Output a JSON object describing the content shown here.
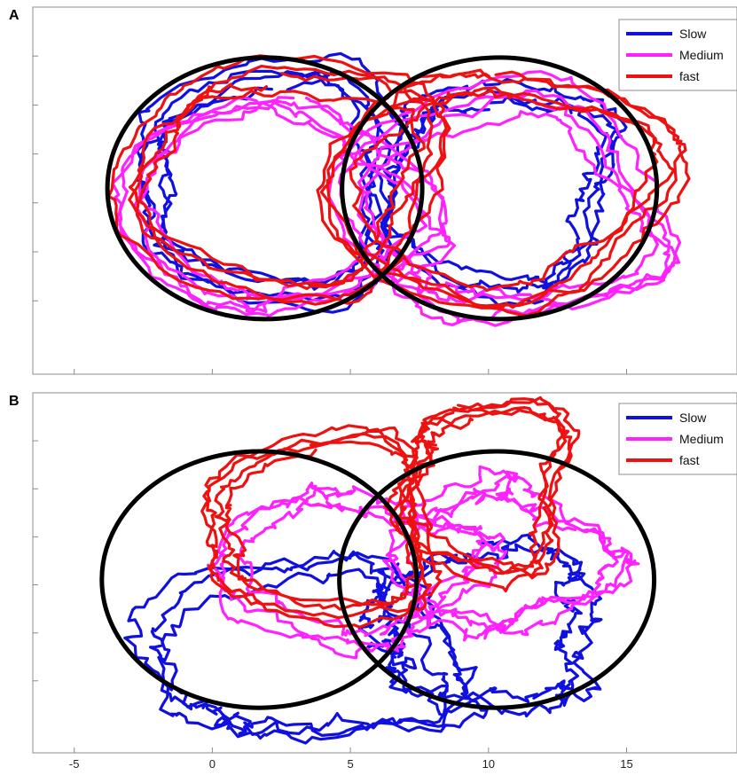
{
  "figure": {
    "series_colors": {
      "Slow": "#1010e0",
      "Medium": "#ff22ff",
      "fast": "#ee1111"
    },
    "circle_color": "#000000"
  },
  "chart_data": [
    {
      "panel_label": "A",
      "type": "line",
      "title": "",
      "xlabel": "",
      "ylabel": "",
      "xlim": [
        -6.5,
        19
      ],
      "ylim": [
        -1,
        15
      ],
      "grid": false,
      "legend_position": "top-right",
      "x_ticks": [],
      "legend": [
        "Slow",
        "Medium",
        "fast"
      ],
      "circles": [
        {
          "cx": 1.9,
          "cy": 7.1,
          "r": 5.7
        },
        {
          "cx": 10.4,
          "cy": 7.1,
          "r": 5.7
        }
      ],
      "series": [
        {
          "name": "Slow",
          "color": "#1010e0",
          "loops": [
            {
              "cx": 1.9,
              "cy": 7.3,
              "rx": 4.6,
              "ry": 4.7,
              "n": 4,
              "noise": 0.45,
              "seed": 11
            },
            {
              "cx": 10.3,
              "cy": 7.3,
              "rx": 4.0,
              "ry": 4.1,
              "n": 3,
              "noise": 0.45,
              "seed": 12
            }
          ]
        },
        {
          "name": "Medium",
          "color": "#ff22ff",
          "loops": [
            {
              "cx": 2.6,
              "cy": 6.2,
              "rx": 5.0,
              "ry": 4.3,
              "n": 4,
              "noise": 0.45,
              "seed": 21
            },
            {
              "cx": 10.8,
              "cy": 6.0,
              "rx": 5.4,
              "ry": 4.6,
              "n": 4,
              "noise": 0.45,
              "seed": 22
            }
          ]
        },
        {
          "name": "fast",
          "color": "#ee1111",
          "loops": [
            {
              "cx": 2.6,
              "cy": 7.6,
              "rx": 5.4,
              "ry": 4.8,
              "n": 4,
              "noise": 0.4,
              "seed": 31
            },
            {
              "cx": 10.6,
              "cy": 7.3,
              "rx": 5.7,
              "ry": 4.7,
              "n": 4,
              "noise": 0.4,
              "seed": 32
            }
          ]
        }
      ]
    },
    {
      "panel_label": "B",
      "type": "line",
      "title": "",
      "xlabel": "",
      "ylabel": "",
      "xlim": [
        -6.5,
        19
      ],
      "ylim": [
        -1,
        15
      ],
      "grid": false,
      "legend_position": "top-right",
      "x_ticks": [
        "-5",
        "0",
        "5",
        "10",
        "15"
      ],
      "legend": [
        "Slow",
        "Medium",
        "fast"
      ],
      "circles": [
        {
          "cx": 1.7,
          "cy": 6.7,
          "r": 5.7
        },
        {
          "cx": 10.3,
          "cy": 6.7,
          "r": 5.7
        }
      ],
      "series": [
        {
          "name": "Slow",
          "color": "#1010e0",
          "loops": [
            {
              "cx": 3.4,
              "cy": 3.2,
              "rx": 5.6,
              "ry": 3.8,
              "n": 3,
              "noise": 0.55,
              "seed": 41
            },
            {
              "cx": 9.6,
              "cy": 4.4,
              "rx": 4.2,
              "ry": 3.4,
              "n": 2,
              "noise": 0.55,
              "seed": 42
            }
          ]
        },
        {
          "name": "Medium",
          "color": "#ff22ff",
          "loops": [
            {
              "cx": 5.4,
              "cy": 7.4,
              "rx": 4.2,
              "ry": 3.2,
              "n": 3,
              "noise": 0.5,
              "seed": 51
            },
            {
              "cx": 10.8,
              "cy": 7.6,
              "rx": 3.6,
              "ry": 3.2,
              "n": 3,
              "noise": 0.5,
              "seed": 52
            }
          ]
        },
        {
          "name": "fast",
          "color": "#ee1111",
          "loops": [
            {
              "cx": 3.8,
              "cy": 9.0,
              "rx": 4.2,
              "ry": 3.8,
              "n": 4,
              "noise": 0.4,
              "seed": 61
            },
            {
              "cx": 9.9,
              "cy": 11.0,
              "rx": 3.0,
              "ry": 3.6,
              "n": 4,
              "noise": 0.4,
              "seed": 62
            }
          ]
        }
      ]
    }
  ]
}
